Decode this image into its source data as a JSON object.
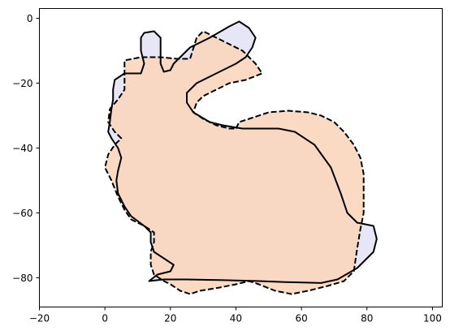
{
  "chart_data": {
    "type": "area",
    "title": "",
    "xlabel": "",
    "ylabel": "",
    "xlim": [
      -20,
      103
    ],
    "ylim": [
      -89,
      3
    ],
    "x_ticks": [
      -20,
      0,
      20,
      40,
      60,
      80,
      100
    ],
    "y_ticks": [
      0,
      -20,
      -40,
      -60,
      -80
    ],
    "x_tick_labels": [
      "−20",
      "0",
      "20",
      "40",
      "60",
      "80",
      "100"
    ],
    "y_tick_labels": [
      "0",
      "−20",
      "−40",
      "−60",
      "−80"
    ],
    "grid": false,
    "legend": "none",
    "series": [
      {
        "style": "solid",
        "fill": "#e3e3f6",
        "stroke": "#000000",
        "points": [
          [
            13.5,
            -81
          ],
          [
            18,
            -80.5
          ],
          [
            25,
            -80.5
          ],
          [
            35,
            -80.7
          ],
          [
            47,
            -81
          ],
          [
            55,
            -81.3
          ],
          [
            66,
            -81.6
          ],
          [
            71,
            -80.5
          ],
          [
            77,
            -77
          ],
          [
            82,
            -72
          ],
          [
            83,
            -68
          ],
          [
            82,
            -64
          ],
          [
            77,
            -63
          ],
          [
            74,
            -60
          ],
          [
            72,
            -54
          ],
          [
            69,
            -46
          ],
          [
            64,
            -39
          ],
          [
            58,
            -35
          ],
          [
            53,
            -34
          ],
          [
            48,
            -34
          ],
          [
            42,
            -34
          ],
          [
            36,
            -33
          ],
          [
            32,
            -32
          ],
          [
            27,
            -29
          ],
          [
            25,
            -26
          ],
          [
            25,
            -23
          ],
          [
            28,
            -20
          ],
          [
            32,
            -18
          ],
          [
            36,
            -16
          ],
          [
            40,
            -14
          ],
          [
            43,
            -12
          ],
          [
            45,
            -9
          ],
          [
            46,
            -6
          ],
          [
            44,
            -3
          ],
          [
            41,
            -1
          ],
          [
            38,
            -2.5
          ],
          [
            32,
            -6
          ],
          [
            26,
            -9
          ],
          [
            24,
            -11
          ],
          [
            21,
            -14
          ],
          [
            20,
            -16
          ],
          [
            18,
            -16.5
          ],
          [
            17,
            -14
          ],
          [
            17,
            -10
          ],
          [
            17,
            -6
          ],
          [
            15,
            -4
          ],
          [
            12,
            -4.5
          ],
          [
            11,
            -6
          ],
          [
            11,
            -10
          ],
          [
            12,
            -14
          ],
          [
            11,
            -17
          ],
          [
            6,
            -17
          ],
          [
            3,
            -19
          ],
          [
            2.5,
            -22
          ],
          [
            2.5,
            -25
          ],
          [
            2,
            -28
          ],
          [
            1.5,
            -32
          ],
          [
            1,
            -35
          ],
          [
            2,
            -37
          ],
          [
            4,
            -40
          ],
          [
            5,
            -43
          ],
          [
            4,
            -47
          ],
          [
            3.5,
            -50
          ],
          [
            4,
            -54
          ],
          [
            6,
            -58
          ],
          [
            8,
            -61
          ],
          [
            12,
            -64
          ],
          [
            14,
            -66
          ],
          [
            14,
            -69
          ],
          [
            15,
            -72
          ],
          [
            18,
            -74
          ],
          [
            21,
            -76
          ],
          [
            20,
            -78
          ],
          [
            16,
            -79
          ],
          [
            13.5,
            -81
          ]
        ]
      },
      {
        "style": "dashed",
        "fill": "#fad6bc",
        "stroke": "#000000",
        "points": [
          [
            40,
            -34
          ],
          [
            41,
            -32
          ],
          [
            44,
            -31
          ],
          [
            50,
            -29
          ],
          [
            56,
            -28.5
          ],
          [
            62,
            -29
          ],
          [
            66,
            -30
          ],
          [
            70,
            -32
          ],
          [
            73,
            -35
          ],
          [
            76,
            -39
          ],
          [
            78,
            -43
          ],
          [
            79,
            -48
          ],
          [
            79,
            -55
          ],
          [
            79,
            -60
          ],
          [
            78,
            -65
          ],
          [
            77,
            -71
          ],
          [
            76,
            -78
          ],
          [
            73,
            -81
          ],
          [
            68,
            -82.5
          ],
          [
            62,
            -84
          ],
          [
            57,
            -85
          ],
          [
            52,
            -84
          ],
          [
            47,
            -82
          ],
          [
            44,
            -81
          ],
          [
            40,
            -82
          ],
          [
            35,
            -83
          ],
          [
            29,
            -84
          ],
          [
            26,
            -85
          ],
          [
            23,
            -84
          ],
          [
            20,
            -82
          ],
          [
            18,
            -81
          ],
          [
            15,
            -79
          ],
          [
            14,
            -76
          ],
          [
            14,
            -72
          ],
          [
            15,
            -69
          ],
          [
            15,
            -66
          ],
          [
            12,
            -64
          ],
          [
            8,
            -62
          ],
          [
            6,
            -59
          ],
          [
            4,
            -55
          ],
          [
            2,
            -50
          ],
          [
            0,
            -46
          ],
          [
            1,
            -42
          ],
          [
            3,
            -39
          ],
          [
            5,
            -37
          ],
          [
            3,
            -35
          ],
          [
            1,
            -32
          ],
          [
            1.5,
            -28
          ],
          [
            4,
            -25
          ],
          [
            6,
            -22
          ],
          [
            6,
            -17
          ],
          [
            6,
            -13
          ],
          [
            11,
            -12
          ],
          [
            17,
            -12
          ],
          [
            22,
            -12.5
          ],
          [
            26,
            -12.5
          ],
          [
            28,
            -6
          ],
          [
            30,
            -4
          ],
          [
            34,
            -6
          ],
          [
            38,
            -8
          ],
          [
            42,
            -10
          ],
          [
            44,
            -12
          ],
          [
            46,
            -14
          ],
          [
            48,
            -17
          ],
          [
            43,
            -19
          ],
          [
            38,
            -20
          ],
          [
            34,
            -22
          ],
          [
            30,
            -24
          ],
          [
            28,
            -26
          ],
          [
            27,
            -29
          ],
          [
            30,
            -31
          ],
          [
            34,
            -33
          ],
          [
            38,
            -34
          ],
          [
            40,
            -34
          ]
        ]
      }
    ]
  }
}
